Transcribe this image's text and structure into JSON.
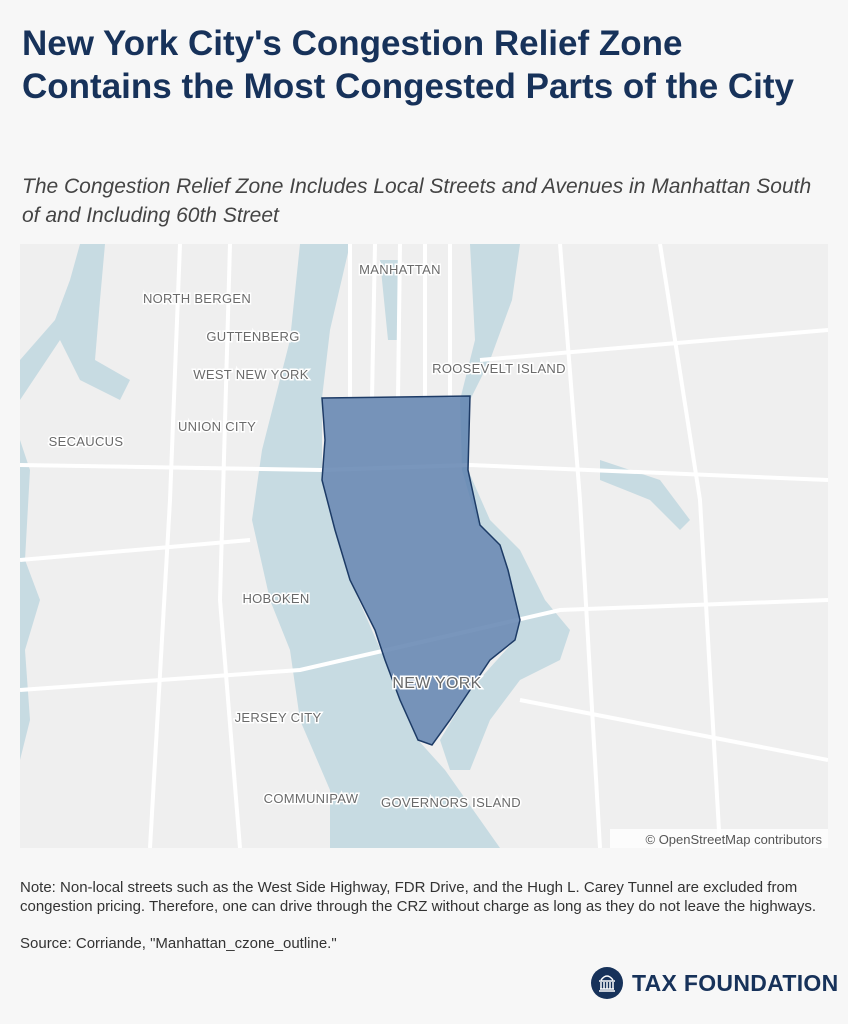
{
  "header": {
    "title": "New York City's Congestion Relief Zone Contains the Most Congested Parts of the City",
    "subtitle": "The Congestion Relief Zone Includes Local Streets and Avenues in Manhattan South of and Including 60th Street"
  },
  "map": {
    "labels": [
      "MANHATTAN",
      "NORTH BERGEN",
      "GUTTENBERG",
      "WEST NEW YORK",
      "ROOSEVELT ISLAND",
      "SECAUCUS",
      "UNION CITY",
      "HOBOKEN",
      "NEW YORK",
      "JERSEY CITY",
      "COMMUNIPAW",
      "GOVERNORS ISLAND"
    ],
    "attribution": "© OpenStreetMap contributors"
  },
  "footer": {
    "note": "Note: Non-local streets such as the West Side Highway, FDR Drive, and the Hugh L. Carey Tunnel are excluded from congestion pricing. Therefore, one can drive through the CRZ without charge as long as they do not leave the highways.",
    "source": "Source: Corriande, \"Manhattan_czone_outline.\"",
    "logo": "TAX FOUNDATION"
  }
}
